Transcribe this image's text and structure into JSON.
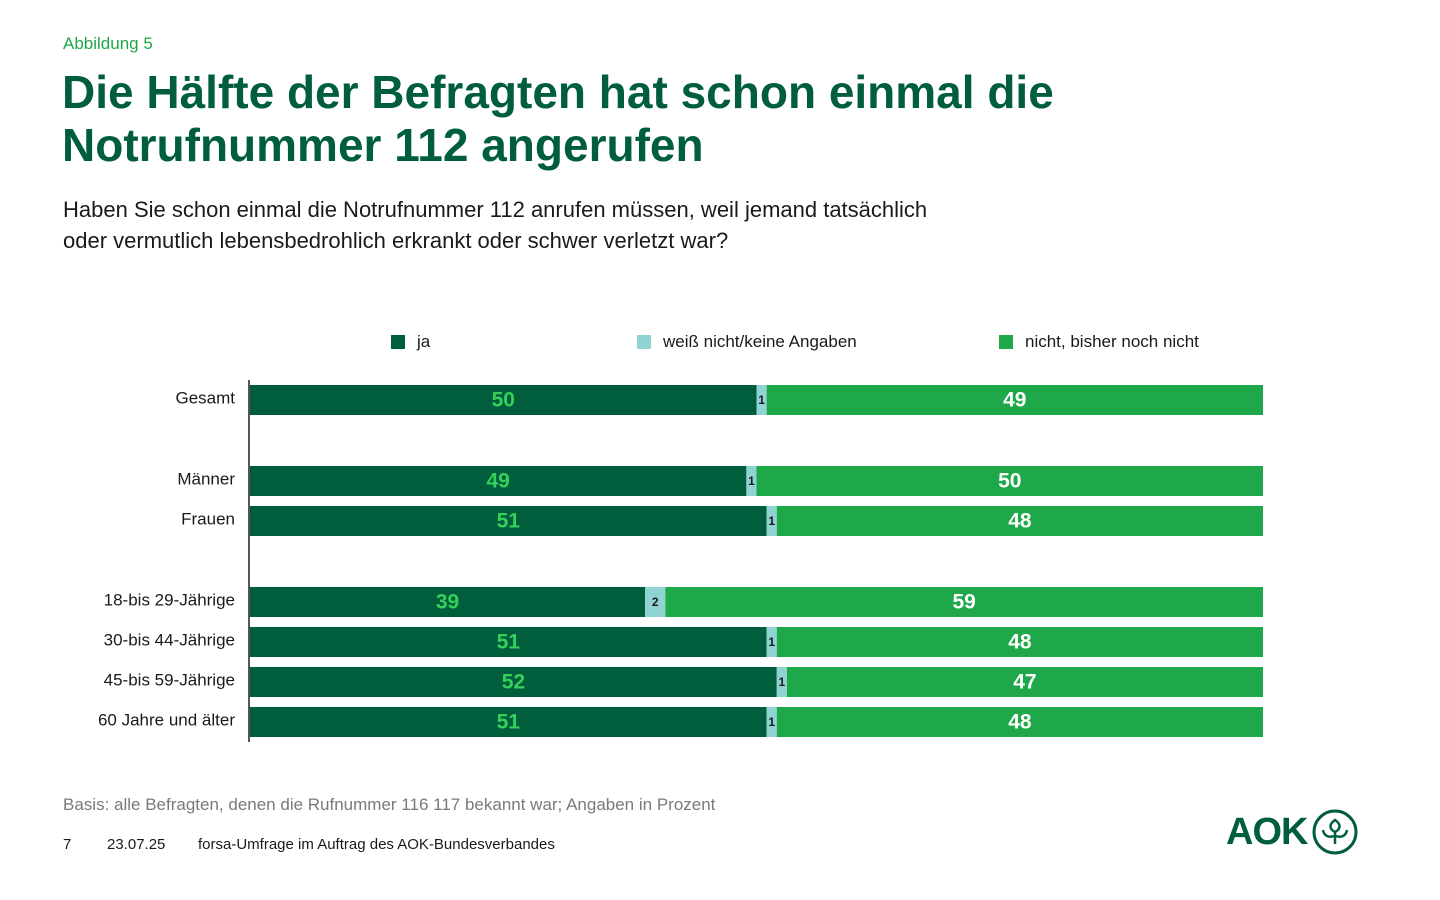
{
  "figure_label": "Abbildung 5",
  "title_lines": [
    "Die Hälfte der Befragten hat schon einmal die",
    "Notrufnummer 112 angerufen"
  ],
  "question_lines": [
    "Haben Sie schon einmal die Notrufnummer 112 anrufen müssen, weil jemand tatsächlich",
    "oder vermutlich lebensbedrohlich erkrankt oder schwer verletzt war?"
  ],
  "colors": {
    "ja": "#005e3c",
    "weiss_nicht": "#8fd3d3",
    "nicht": "#1fa84a",
    "ja_label": "#35d05c",
    "nicht_label": "#ffffff",
    "small_label": "#1a1a1a",
    "axis": "#555555"
  },
  "chart_data": {
    "type": "bar",
    "orientation": "horizontal",
    "stacked": true,
    "xlim": [
      0,
      100
    ],
    "categories": [
      "Gesamt",
      "Männer",
      "Frauen",
      "18-bis 29-Jährige",
      "30-bis 44-Jährige",
      "45-bis 59-Jährige",
      "60 Jahre und älter"
    ],
    "groups": [
      [
        0
      ],
      [
        1,
        2
      ],
      [
        3,
        4,
        5,
        6
      ]
    ],
    "series": [
      {
        "key": "ja",
        "name": "ja",
        "values": [
          50,
          49,
          51,
          39,
          51,
          52,
          51
        ]
      },
      {
        "key": "weiss_nicht",
        "name": "weiß nicht/keine Angaben",
        "values": [
          1,
          1,
          1,
          2,
          1,
          1,
          1
        ]
      },
      {
        "key": "nicht",
        "name": "nicht, bisher noch nicht",
        "values": [
          49,
          50,
          48,
          59,
          48,
          47,
          48
        ]
      }
    ],
    "unit": "Prozent"
  },
  "basis": "Basis: alle Befragten, denen die Rufnummer 116 117 bekannt war; Angaben in Prozent",
  "footer": {
    "page": "7",
    "date": "23.07.25",
    "source": "forsa-Umfrage im Auftrag des AOK-Bundesverbandes"
  },
  "logo": {
    "text": "AOK"
  }
}
